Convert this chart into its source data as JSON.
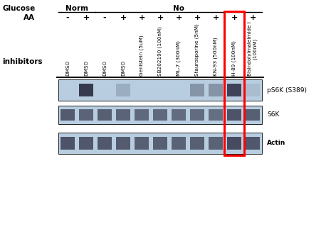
{
  "background_color": "#ffffff",
  "glucose_label": "Glucose",
  "glucose_norm": "Norm",
  "glucose_no": "No",
  "aa_label": "AA",
  "aa_signs": [
    "-",
    "+",
    "-",
    "+",
    "+",
    "+",
    "+",
    "+",
    "+",
    "+",
    "+"
  ],
  "inhibitors_label": "inhibitors",
  "column_labels": [
    "DMSO",
    "DMSO",
    "DMSO",
    "DMSO",
    "Genistein (5uM)",
    "SB202190 (100nM)",
    "ML-7 (300nM)",
    "Staurosporine (5nM)",
    "KN-93 (500nM)",
    "H-89 (100nM)",
    "Bisindolylmaleimide I\n(100nM)"
  ],
  "band_labels": [
    "pS6K (S389)",
    "S6K",
    "Actin"
  ],
  "n_lanes": 11,
  "highlight_col": 9,
  "red_box_color": "#ff0000",
  "band_bg_color": "#b8cee0",
  "band_dark_color": "#2a2a40",
  "ps6k_intensities": [
    0.0,
    0.9,
    0.0,
    0.2,
    0.0,
    0.0,
    0.0,
    0.35,
    0.35,
    0.85,
    0.1
  ],
  "s6k_intensities": [
    0.7,
    0.65,
    0.68,
    0.65,
    0.62,
    0.62,
    0.6,
    0.6,
    0.58,
    0.75,
    0.68
  ],
  "actin_intensities": [
    0.75,
    0.72,
    0.72,
    0.7,
    0.68,
    0.68,
    0.66,
    0.68,
    0.66,
    0.8,
    0.72
  ]
}
